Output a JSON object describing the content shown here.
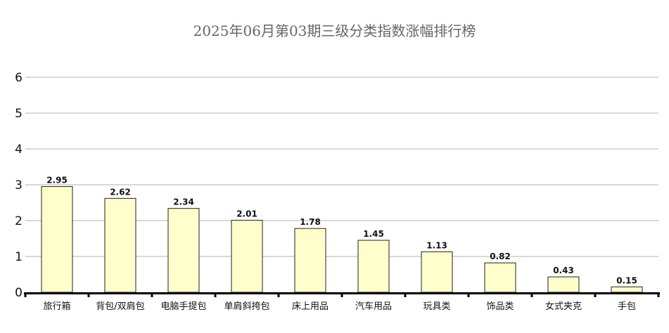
{
  "chart_data": {
    "type": "bar",
    "title": "2025年06月第03期三级分类指数涨幅排行榜",
    "categories": [
      "旅行箱",
      "背包/双肩包",
      "电脑手提包",
      "单肩斜挎包",
      "床上用品",
      "汽车用品",
      "玩具类",
      "饰品类",
      "女式夹克",
      "手包"
    ],
    "values": [
      2.95,
      2.62,
      2.34,
      2.01,
      1.78,
      1.45,
      1.13,
      0.82,
      0.43,
      0.15
    ],
    "value_labels": [
      "2.95",
      "2.62",
      "2.34",
      "2.01",
      "1.78",
      "1.45",
      "1.13",
      "0.82",
      "0.43",
      "0.15"
    ],
    "y_ticks": [
      "0",
      "1",
      "2",
      "3",
      "4",
      "5",
      "6"
    ],
    "ylim": [
      0,
      6
    ],
    "grid": true,
    "colors": {
      "bar_fill": "#ffffcc",
      "bar_stroke": "#222222",
      "grid": "#b0b0b0",
      "axis": "#000000",
      "title": "#666666"
    }
  }
}
